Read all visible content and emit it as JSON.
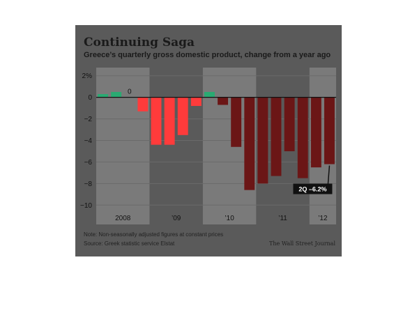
{
  "chart_data": {
    "type": "bar",
    "title": "Continuing Saga",
    "subtitle": "Greece’s quarterly gross domestic product, change from a year ago",
    "y_unit_label": "2%",
    "yticks": [
      2,
      0,
      -2,
      -4,
      -6,
      -8,
      -10
    ],
    "ylim": [
      -10.5,
      2.5
    ],
    "grid": true,
    "year_labels": [
      "2008",
      "’09",
      "’10",
      "’11",
      "’12"
    ],
    "quarters": [
      "2008 Q1",
      "2008 Q2",
      "2008 Q3",
      "2008 Q4",
      "2009 Q1",
      "2009 Q2",
      "2009 Q3",
      "2009 Q4",
      "2010 Q1",
      "2010 Q2",
      "2010 Q3",
      "2010 Q4",
      "2011 Q1",
      "2011 Q2",
      "2011 Q3",
      "2011 Q4",
      "2012 Q1",
      "2012 Q2"
    ],
    "values": [
      0.3,
      0.5,
      0,
      -1.3,
      -4.4,
      -4.4,
      -3.5,
      -0.8,
      0.5,
      -0.7,
      -4.6,
      -8.6,
      -8.0,
      -7.3,
      -5.0,
      -7.5,
      -6.5,
      -6.2
    ],
    "value_labels": [
      "",
      "",
      "0",
      "",
      "",
      "",
      "",
      "",
      "",
      "",
      "",
      "",
      "",
      "",
      "",
      "",
      "",
      ""
    ],
    "callout": "2Q –6.2%",
    "note": "Note: Non-seasonally adjusted figures at constant prices",
    "source": "Source: Greek statistic service Elstat",
    "credit": "The Wall Street Journal",
    "colors": {
      "positive": "#2aaa72",
      "negative_highlight": "#ff3b3b",
      "negative": "#6b1616",
      "callout_bg": "#111111",
      "panel": "#5a5a5a",
      "band": "#7a7a7a",
      "zero_line": "#111111"
    }
  }
}
